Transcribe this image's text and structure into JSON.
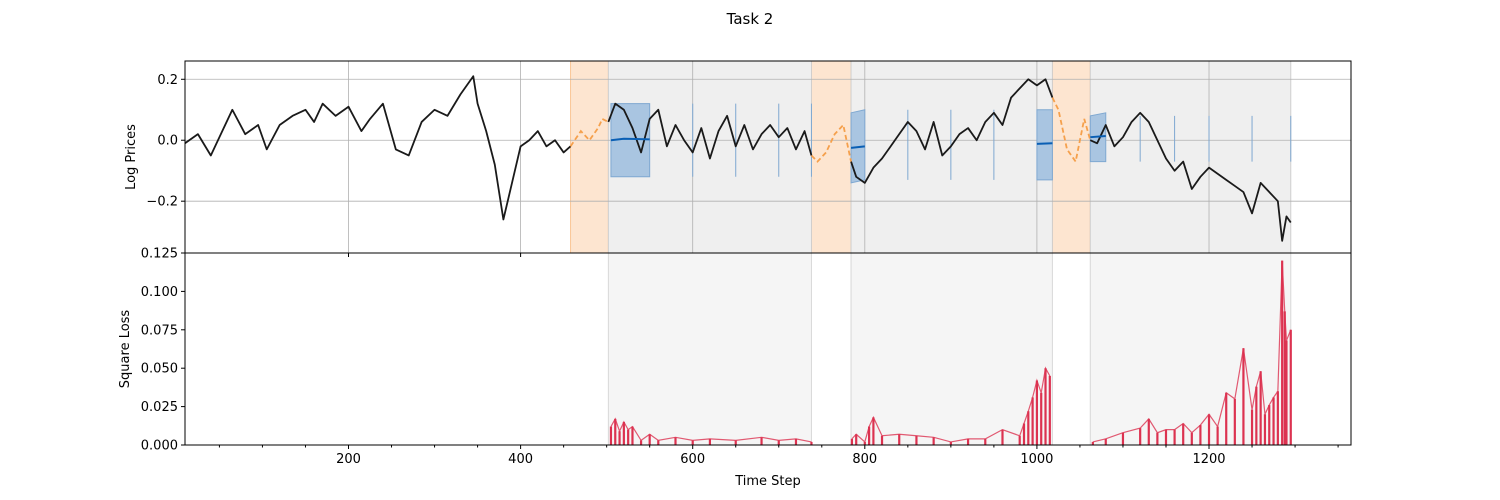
{
  "figure": {
    "title": "Task 2"
  },
  "colors": {
    "price": "#1a1a1a",
    "context": "#f5a04c",
    "context_band": "#fde5d0",
    "forecast": "#0a5fb4",
    "interval": "#a9c5e1",
    "eval_band": "#efefef",
    "loss": "#dc3250"
  },
  "chart_data": [
    {
      "type": "line",
      "title": "",
      "xlabel": "",
      "ylabel": "Log Prices",
      "xlim": [
        10,
        1365
      ],
      "ylim": [
        -0.37,
        0.26
      ],
      "xticks": [
        200,
        400,
        600,
        800,
        1000,
        1200
      ],
      "xtick_labels": [
        "",
        "",
        "",
        "",
        "",
        ""
      ],
      "yticks": [
        -0.2,
        0.0,
        0.2
      ],
      "ytick_labels": [
        "−0.2",
        "0.0",
        "0.2"
      ],
      "grid": true,
      "context_windows": [
        [
          458,
          502
        ],
        [
          738,
          784
        ],
        [
          1018,
          1062
        ]
      ],
      "forecast_windows": [
        [
          502,
          738
        ],
        [
          784,
          1018
        ],
        [
          1062,
          1295
        ]
      ],
      "series": [
        {
          "kind": "observed",
          "x": [
            10,
            25,
            40,
            55,
            65,
            80,
            95,
            105,
            120,
            135,
            150,
            160,
            170,
            185,
            200,
            215,
            225,
            240,
            255,
            270,
            285,
            300,
            315,
            330,
            345,
            350,
            360,
            370,
            380,
            390,
            400,
            410,
            420,
            430,
            440,
            450,
            458
          ],
          "y": [
            -0.01,
            0.02,
            -0.05,
            0.04,
            0.1,
            0.02,
            0.05,
            -0.03,
            0.05,
            0.08,
            0.1,
            0.06,
            0.12,
            0.08,
            0.11,
            0.03,
            0.07,
            0.12,
            -0.03,
            -0.05,
            0.06,
            0.1,
            0.08,
            0.15,
            0.21,
            0.12,
            0.03,
            -0.08,
            -0.26,
            -0.14,
            -0.02,
            0.0,
            0.03,
            -0.02,
            0.0,
            -0.04,
            -0.02
          ]
        },
        {
          "kind": "observed",
          "x": [
            502,
            510,
            520,
            530,
            540,
            550,
            560,
            570,
            580,
            590,
            600,
            610,
            620,
            630,
            640,
            650,
            660,
            670,
            680,
            690,
            700,
            710,
            720,
            730,
            738,
            784,
            790,
            800,
            810,
            820,
            830,
            840,
            850,
            860,
            870,
            880,
            890,
            900,
            910,
            920,
            930,
            940,
            950,
            960,
            970,
            980,
            990,
            1000,
            1010,
            1018,
            1062,
            1070,
            1080,
            1090,
            1100,
            1110,
            1120,
            1130,
            1140,
            1150,
            1160,
            1170,
            1180,
            1190,
            1200,
            1210,
            1220,
            1230,
            1240,
            1250,
            1260,
            1270,
            1280,
            1285,
            1290,
            1295
          ],
          "y": [
            0.06,
            0.12,
            0.1,
            0.04,
            -0.04,
            0.07,
            0.1,
            -0.02,
            0.05,
            0.0,
            -0.04,
            0.04,
            -0.06,
            0.03,
            0.08,
            -0.02,
            0.05,
            -0.03,
            0.02,
            0.05,
            0.01,
            0.04,
            -0.03,
            0.03,
            -0.05,
            -0.07,
            -0.12,
            -0.14,
            -0.09,
            -0.06,
            -0.02,
            0.02,
            0.06,
            0.03,
            -0.03,
            0.06,
            -0.05,
            -0.02,
            0.02,
            0.04,
            0.0,
            0.06,
            0.09,
            0.05,
            0.14,
            0.17,
            0.2,
            0.18,
            0.2,
            0.14,
            0.0,
            -0.01,
            0.05,
            -0.02,
            0.01,
            0.06,
            0.09,
            0.06,
            0.0,
            -0.06,
            -0.1,
            -0.07,
            -0.16,
            -0.12,
            -0.09,
            -0.11,
            -0.13,
            -0.15,
            -0.17,
            -0.24,
            -0.14,
            -0.17,
            -0.2,
            -0.33,
            -0.25,
            -0.27
          ]
        },
        {
          "kind": "context",
          "x": [
            458,
            470,
            480,
            490,
            495,
            502,
            738,
            745,
            755,
            765,
            775,
            784,
            1018,
            1025,
            1035,
            1045,
            1055,
            1062
          ],
          "y": [
            -0.02,
            0.03,
            0.0,
            0.04,
            0.07,
            0.06,
            -0.05,
            -0.07,
            -0.04,
            0.02,
            0.05,
            -0.07,
            0.14,
            0.1,
            -0.03,
            -0.07,
            0.07,
            0.0
          ]
        },
        {
          "kind": "forecast",
          "x": [
            505,
            520,
            550,
            600,
            650,
            700,
            738,
            784,
            800,
            850,
            900,
            950,
            1000,
            1018,
            1062,
            1080,
            1120,
            1160,
            1200,
            1250,
            1295
          ],
          "y": [
            0.0,
            0.005,
            0.003,
            0.002,
            0.003,
            0.004,
            0.003,
            -0.025,
            -0.02,
            -0.015,
            -0.014,
            -0.013,
            -0.012,
            -0.01,
            0.01,
            0.014,
            0.01,
            0.008,
            0.006,
            0.005,
            0.005
          ],
          "lower": [
            -0.12,
            -0.12,
            -0.12,
            -0.12,
            -0.12,
            -0.12,
            -0.12,
            -0.14,
            -0.13,
            -0.13,
            -0.13,
            -0.13,
            -0.13,
            -0.13,
            -0.07,
            -0.07,
            -0.07,
            -0.07,
            -0.07,
            -0.07,
            -0.07
          ],
          "upper": [
            0.12,
            0.12,
            0.12,
            0.12,
            0.12,
            0.12,
            0.12,
            0.09,
            0.1,
            0.1,
            0.1,
            0.1,
            0.1,
            0.1,
            0.08,
            0.09,
            0.08,
            0.08,
            0.08,
            0.08,
            0.08
          ]
        }
      ]
    },
    {
      "type": "bar",
      "title": "",
      "xlabel": "Time Step",
      "ylabel": "Square Loss",
      "xlim": [
        10,
        1365
      ],
      "ylim": [
        0,
        0.125
      ],
      "xticks": [
        200,
        400,
        600,
        800,
        1000,
        1200
      ],
      "xtick_labels": [
        "200",
        "400",
        "600",
        "800",
        "1000",
        "1200"
      ],
      "yticks": [
        0.0,
        0.025,
        0.05,
        0.075,
        0.1,
        0.125
      ],
      "ytick_labels": [
        "0.000",
        "0.025",
        "0.050",
        "0.075",
        "0.100",
        "0.125"
      ],
      "grid": false,
      "forecast_windows": [
        [
          502,
          738
        ],
        [
          784,
          1018
        ],
        [
          1062,
          1295
        ]
      ],
      "series": [
        {
          "name": "",
          "x": [
            505,
            510,
            515,
            520,
            525,
            530,
            540,
            550,
            560,
            580,
            600,
            620,
            650,
            680,
            700,
            720,
            738,
            785,
            790,
            800,
            805,
            810,
            820,
            840,
            860,
            880,
            900,
            920,
            940,
            960,
            980,
            985,
            990,
            995,
            1000,
            1005,
            1010,
            1015,
            1065,
            1080,
            1100,
            1120,
            1130,
            1140,
            1150,
            1160,
            1170,
            1180,
            1190,
            1200,
            1210,
            1220,
            1230,
            1240,
            1250,
            1255,
            1260,
            1265,
            1270,
            1275,
            1280,
            1285,
            1288,
            1290,
            1295
          ],
          "values": [
            0.012,
            0.017,
            0.009,
            0.015,
            0.01,
            0.012,
            0.003,
            0.007,
            0.003,
            0.005,
            0.003,
            0.004,
            0.003,
            0.005,
            0.003,
            0.004,
            0.002,
            0.004,
            0.007,
            0.002,
            0.012,
            0.018,
            0.006,
            0.007,
            0.006,
            0.005,
            0.002,
            0.004,
            0.004,
            0.01,
            0.006,
            0.014,
            0.022,
            0.031,
            0.042,
            0.034,
            0.05,
            0.045,
            0.002,
            0.004,
            0.008,
            0.011,
            0.017,
            0.008,
            0.01,
            0.01,
            0.014,
            0.008,
            0.013,
            0.02,
            0.012,
            0.034,
            0.03,
            0.063,
            0.023,
            0.038,
            0.048,
            0.02,
            0.026,
            0.031,
            0.035,
            0.12,
            0.087,
            0.068,
            0.075
          ]
        }
      ]
    }
  ]
}
